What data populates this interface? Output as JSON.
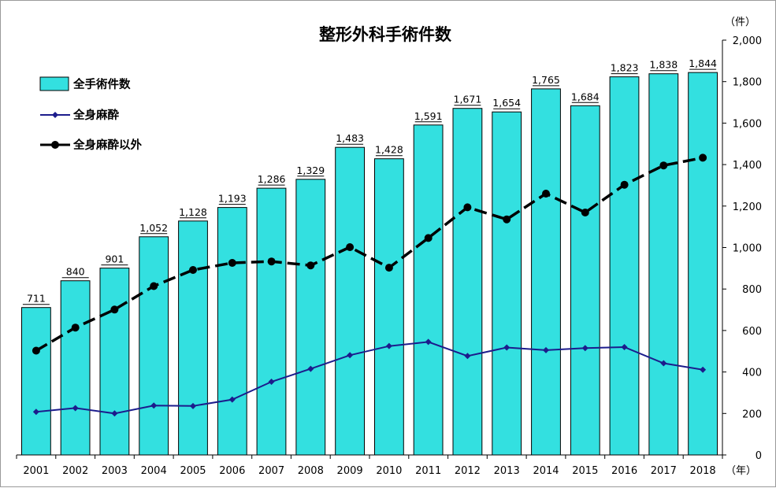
{
  "chart_data": {
    "type": "bar",
    "title": "整形外科手術件数",
    "y_unit": "（件）",
    "x_unit": "（年）",
    "ylim": [
      0,
      2000
    ],
    "yticks": [
      "0",
      "200",
      "400",
      "600",
      "800",
      "1,000",
      "1,200",
      "1,400",
      "1,600",
      "1,800",
      "2,000"
    ],
    "ytick_values": [
      0,
      200,
      400,
      600,
      800,
      1000,
      1200,
      1400,
      1600,
      1800,
      2000
    ],
    "grid": false,
    "legend_position": "top-left",
    "categories": [
      "2001",
      "2002",
      "2003",
      "2004",
      "2005",
      "2006",
      "2007",
      "2008",
      "2009",
      "2010",
      "2011",
      "2012",
      "2013",
      "2014",
      "2015",
      "2016",
      "2017",
      "2018"
    ],
    "series": [
      {
        "name": "全手術件数",
        "type": "bar",
        "color": "#33e0e0",
        "values": [
          711,
          840,
          901,
          1052,
          1128,
          1193,
          1286,
          1329,
          1483,
          1428,
          1591,
          1671,
          1654,
          1765,
          1684,
          1823,
          1838,
          1844
        ],
        "labels": [
          "711",
          "840",
          "901",
          "1,052",
          "1,128",
          "1,193",
          "1,286",
          "1,329",
          "1,483",
          "1,428",
          "1,591",
          "1,671",
          "1,654",
          "1,765",
          "1,684",
          "1,823",
          "1,838",
          "1,844"
        ]
      },
      {
        "name": "全身麻酔",
        "type": "line",
        "color": "#1c1c8c",
        "values": [
          208,
          226,
          200,
          238,
          236,
          267,
          353,
          415,
          481,
          525,
          545,
          477,
          518,
          505,
          515,
          520,
          442,
          411
        ]
      },
      {
        "name": "全身麻酔以外",
        "type": "line",
        "color": "#000000",
        "values": [
          503,
          614,
          701,
          814,
          892,
          926,
          933,
          914,
          1002,
          903,
          1046,
          1194,
          1136,
          1260,
          1169,
          1303,
          1396,
          1433
        ]
      }
    ]
  }
}
